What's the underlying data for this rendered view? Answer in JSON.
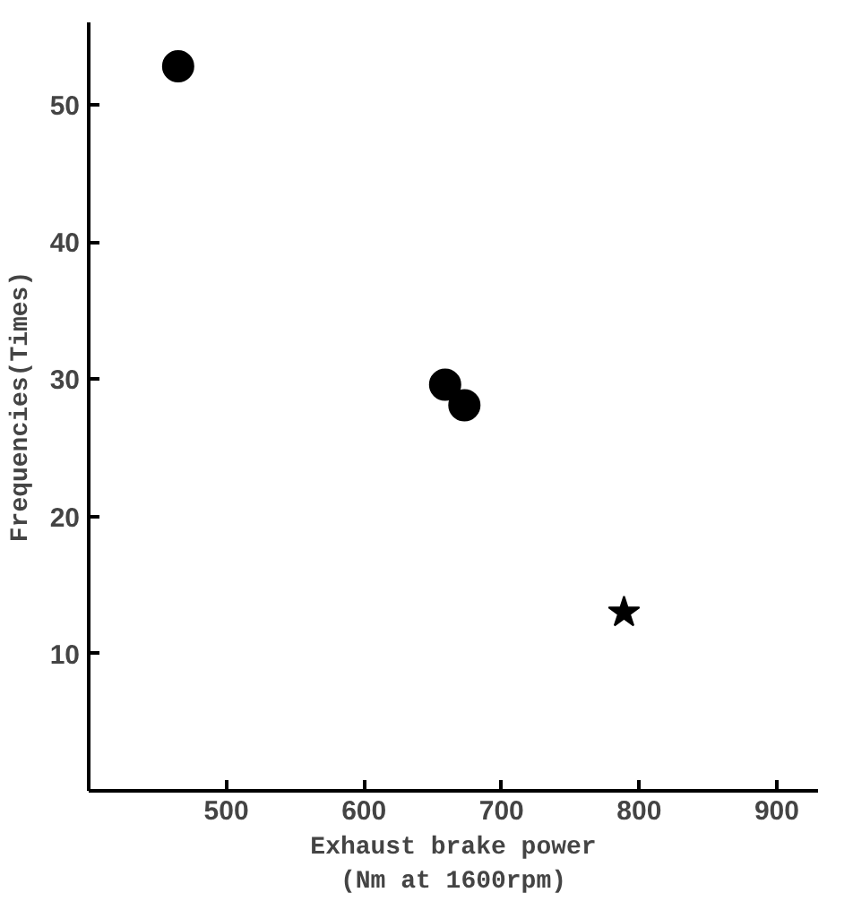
{
  "chart_data": {
    "type": "scatter",
    "xlabel": "Exhaust brake power\n(Nm at 1600rpm)",
    "ylabel": "Frequencies(Times)",
    "xlim": [
      400,
      930
    ],
    "ylim": [
      0,
      56
    ],
    "xticks": [
      500,
      600,
      700,
      800,
      900
    ],
    "yticks": [
      {
        "value": 0,
        "label": null
      },
      10,
      20,
      30,
      40,
      50
    ],
    "grid": false,
    "series": [
      {
        "color": "#000000",
        "marker": "circle",
        "x": [
          465,
          659,
          673
        ],
        "values": [
          52.8,
          29.6,
          28.1
        ]
      },
      {
        "color": "#000000",
        "marker": "star",
        "x": [
          789
        ],
        "values": [
          13.0
        ]
      }
    ]
  }
}
